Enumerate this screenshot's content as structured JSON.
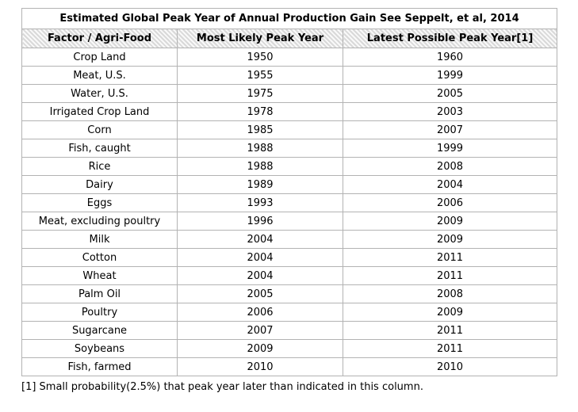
{
  "chart_data": {
    "type": "table",
    "title": "Estimated Global Peak Year of Annual Production Gain See Seppelt, et al, 2014",
    "columns": [
      "Factor / Agri-Food",
      "Most Likely Peak Year",
      "Latest Possible Peak Year[1]"
    ],
    "rows": [
      [
        "Crop Land",
        "1950",
        "1960"
      ],
      [
        "Meat, U.S.",
        "1955",
        "1999"
      ],
      [
        "Water, U.S.",
        "1975",
        "2005"
      ],
      [
        "Irrigated Crop Land",
        "1978",
        "2003"
      ],
      [
        "Corn",
        "1985",
        "2007"
      ],
      [
        "Fish, caught",
        "1988",
        "1999"
      ],
      [
        "Rice",
        "1988",
        "2008"
      ],
      [
        "Dairy",
        "1989",
        "2004"
      ],
      [
        "Eggs",
        "1993",
        "2006"
      ],
      [
        "Meat, excluding poultry",
        "1996",
        "2009"
      ],
      [
        "Milk",
        "2004",
        "2009"
      ],
      [
        "Cotton",
        "2004",
        "2011"
      ],
      [
        "Wheat",
        "2004",
        "2011"
      ],
      [
        "Palm Oil",
        "2005",
        "2008"
      ],
      [
        "Poultry",
        "2006",
        "2009"
      ],
      [
        "Sugarcane",
        "2007",
        "2011"
      ],
      [
        "Soybeans",
        "2009",
        "2011"
      ],
      [
        "Fish, farmed",
        "2010",
        "2010"
      ]
    ],
    "footnote": "[1] Small probability(2.5%) that peak year later than indicated in this column.",
    "layout_hints": {
      "header_background": "diagonal-hatch",
      "grid": true,
      "title_position": "top-row-spanning-all-columns"
    }
  },
  "colors": {
    "border": "#b3b3b3",
    "header_stripe_dark": "#d9d9d9",
    "header_stripe_light": "#f9f9f9",
    "text": "#000000",
    "background": "#ffffff"
  }
}
